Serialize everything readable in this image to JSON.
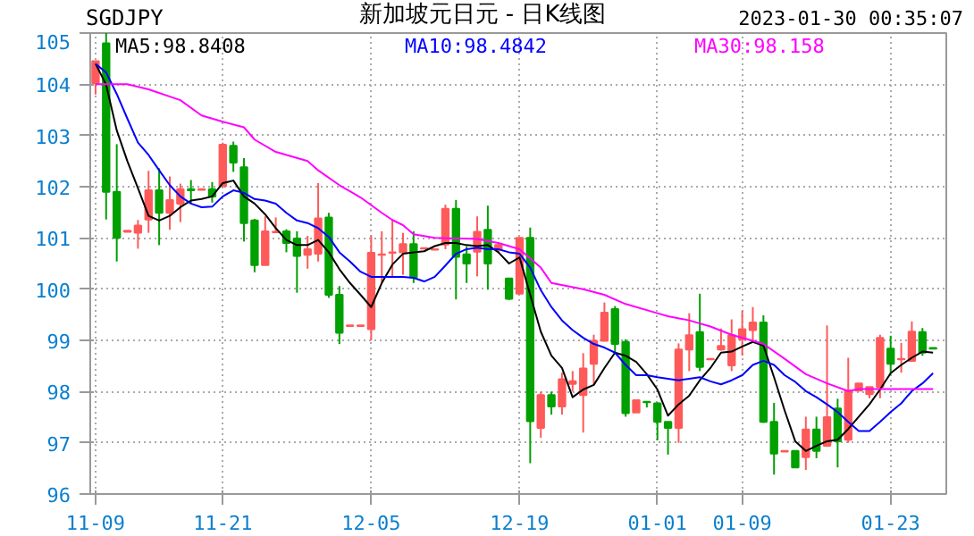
{
  "chart_data": {
    "type": "candlestick",
    "title": "新加坡元日元 - 日K线图",
    "subtitle": "SGDJPY",
    "annotations": [
      "2023-01-30 00:35:07"
    ],
    "x": [
      "2022-11-09",
      "2022-11-10",
      "2022-11-11",
      "2022-11-12",
      "2022-11-13",
      "2022-11-14",
      "2022-11-15",
      "2022-11-16",
      "2022-11-17",
      "2022-11-18",
      "2022-11-19",
      "2022-11-20",
      "2022-11-21",
      "2022-11-22",
      "2022-11-23",
      "2022-11-24",
      "2022-11-25",
      "2022-11-26",
      "2022-11-27",
      "2022-11-28",
      "2022-11-29",
      "2022-11-30",
      "2022-12-01",
      "2022-12-02",
      "2022-12-03",
      "2022-12-04",
      "2022-12-05",
      "2022-12-06",
      "2022-12-07",
      "2022-12-08",
      "2022-12-09",
      "2022-12-10",
      "2022-12-11",
      "2022-12-12",
      "2022-12-13",
      "2022-12-14",
      "2022-12-15",
      "2022-12-16",
      "2022-12-17",
      "2022-12-18",
      "2022-12-19",
      "2022-12-20",
      "2022-12-21",
      "2022-12-22",
      "2022-12-23",
      "2022-12-24",
      "2022-12-25",
      "2022-12-26",
      "2022-12-27",
      "2022-12-28",
      "2022-12-29",
      "2022-12-30",
      "2022-12-31",
      "2023-01-01",
      "2023-01-02",
      "2023-01-03",
      "2023-01-04",
      "2023-01-05",
      "2023-01-06",
      "2023-01-07",
      "2023-01-08",
      "2023-01-09",
      "2023-01-10",
      "2023-01-11",
      "2023-01-12",
      "2023-01-13",
      "2023-01-14",
      "2023-01-15",
      "2023-01-16",
      "2023-01-17",
      "2023-01-18",
      "2023-01-19",
      "2023-01-20",
      "2023-01-21",
      "2023-01-22",
      "2023-01-23",
      "2023-01-24",
      "2023-01-25",
      "2023-01-26",
      "2023-01-27"
    ],
    "ohlc": [
      [
        104.02,
        104.45,
        103.8,
        104.45
      ],
      [
        104.8,
        105.0,
        101.36,
        101.9
      ],
      [
        101.9,
        102.83,
        100.54,
        101.0
      ],
      [
        101.12,
        101.14,
        101.12,
        101.14
      ],
      [
        101.1,
        101.35,
        100.79,
        101.24
      ],
      [
        101.36,
        102.31,
        101.1,
        101.93
      ],
      [
        101.93,
        102.36,
        100.86,
        101.49
      ],
      [
        101.49,
        102.2,
        101.16,
        101.74
      ],
      [
        101.67,
        102.06,
        101.31,
        101.95
      ],
      [
        101.95,
        102.13,
        101.67,
        101.93
      ],
      [
        101.94,
        101.96,
        101.94,
        101.95
      ],
      [
        101.95,
        102.09,
        101.69,
        101.81
      ],
      [
        102.01,
        102.86,
        102.01,
        102.82
      ],
      [
        102.8,
        102.88,
        102.29,
        102.47
      ],
      [
        102.38,
        102.56,
        100.93,
        101.29
      ],
      [
        101.34,
        101.37,
        100.33,
        100.47
      ],
      [
        100.47,
        101.42,
        100.47,
        101.13
      ],
      [
        101.11,
        101.4,
        101.11,
        101.12
      ],
      [
        101.13,
        101.17,
        100.72,
        100.9
      ],
      [
        100.99,
        101.13,
        99.93,
        100.65
      ],
      [
        100.67,
        101.04,
        100.4,
        100.78
      ],
      [
        100.69,
        102.07,
        100.54,
        101.38
      ],
      [
        101.4,
        101.49,
        99.83,
        99.89
      ],
      [
        99.89,
        100.06,
        98.93,
        99.15
      ],
      [
        99.28,
        99.3,
        99.28,
        99.29
      ],
      [
        99.28,
        99.3,
        99.28,
        99.29
      ],
      [
        99.22,
        101.05,
        99.0,
        100.71
      ],
      [
        100.67,
        101.13,
        100.12,
        100.68
      ],
      [
        100.71,
        101.36,
        100.24,
        100.72
      ],
      [
        100.72,
        101.1,
        100.28,
        100.88
      ],
      [
        100.88,
        101.13,
        100.12,
        100.23
      ],
      [
        100.79,
        100.81,
        100.79,
        100.8
      ],
      [
        100.77,
        100.79,
        100.77,
        100.78
      ],
      [
        100.87,
        101.65,
        100.78,
        101.57
      ],
      [
        101.57,
        101.74,
        99.8,
        100.63
      ],
      [
        100.68,
        100.84,
        100.12,
        100.5
      ],
      [
        100.73,
        101.42,
        100.25,
        101.12
      ],
      [
        101.16,
        101.63,
        99.99,
        100.5
      ],
      [
        100.78,
        100.9,
        100.7,
        100.86
      ],
      [
        100.21,
        100.22,
        99.79,
        99.81
      ],
      [
        99.91,
        101.0,
        99.91,
        101.0
      ],
      [
        101.0,
        101.2,
        96.6,
        97.42
      ],
      [
        97.29,
        98.0,
        97.1,
        97.93
      ],
      [
        97.93,
        98.0,
        97.55,
        97.71
      ],
      [
        97.71,
        98.37,
        97.55,
        98.24
      ],
      [
        98.15,
        98.4,
        98.0,
        98.2
      ],
      [
        97.93,
        98.75,
        97.2,
        98.45
      ],
      [
        98.54,
        99.11,
        98.15,
        98.99
      ],
      [
        98.99,
        99.74,
        98.98,
        99.54
      ],
      [
        99.61,
        99.67,
        98.76,
        98.93
      ],
      [
        98.97,
        99.02,
        97.51,
        97.58
      ],
      [
        97.59,
        97.83,
        97.59,
        97.83
      ],
      [
        97.8,
        97.81,
        97.69,
        97.79
      ],
      [
        97.77,
        97.79,
        97.05,
        97.41
      ],
      [
        97.41,
        97.41,
        96.77,
        97.29
      ],
      [
        97.29,
        98.94,
        97.0,
        98.82
      ],
      [
        98.82,
        99.53,
        98.4,
        99.1
      ],
      [
        99.16,
        99.91,
        98.4,
        98.48
      ],
      [
        98.63,
        98.65,
        98.63,
        98.64
      ],
      [
        98.82,
        99.23,
        98.8,
        98.89
      ],
      [
        98.51,
        99.41,
        98.4,
        99.1
      ],
      [
        99.02,
        99.58,
        98.7,
        99.22
      ],
      [
        99.2,
        99.65,
        98.99,
        99.35
      ],
      [
        99.35,
        99.49,
        97.39,
        97.41
      ],
      [
        97.41,
        97.78,
        96.38,
        96.79
      ],
      [
        96.83,
        96.85,
        96.83,
        96.84
      ],
      [
        96.84,
        96.84,
        96.52,
        96.52
      ],
      [
        96.72,
        97.51,
        96.47,
        97.26
      ],
      [
        97.26,
        97.51,
        96.7,
        96.84
      ],
      [
        96.94,
        99.29,
        96.92,
        97.5
      ],
      [
        97.67,
        97.86,
        96.52,
        97.03
      ],
      [
        97.06,
        98.66,
        97.0,
        98.02
      ],
      [
        98.02,
        98.16,
        98.02,
        98.16
      ],
      [
        97.95,
        98.09,
        97.87,
        98.09
      ],
      [
        98.09,
        99.11,
        97.87,
        99.05
      ],
      [
        98.84,
        99.09,
        98.35,
        98.54
      ],
      [
        98.63,
        98.95,
        98.37,
        98.64
      ],
      [
        98.6,
        99.37,
        98.58,
        99.17
      ],
      [
        99.16,
        99.24,
        98.7,
        98.76
      ],
      [
        98.85,
        98.86,
        98.83,
        98.84
      ]
    ],
    "colors": [
      "#ff5a5a",
      "#00a000",
      "#00a000",
      "#ff5a5a",
      "#ff5a5a",
      "#ff5a5a",
      "#00a000",
      "#ff5a5a",
      "#ff5a5a",
      "#00a000",
      "#ff5a5a",
      "#00a000",
      "#ff5a5a",
      "#00a000",
      "#00a000",
      "#00a000",
      "#ff5a5a",
      "#ff5a5a",
      "#00a000",
      "#00a000",
      "#ff5a5a",
      "#ff5a5a",
      "#00a000",
      "#00a000",
      "#ff5a5a",
      "#ff5a5a",
      "#ff5a5a",
      "#ff5a5a",
      "#ff5a5a",
      "#ff5a5a",
      "#00a000",
      "#ff5a5a",
      "#ff5a5a",
      "#ff5a5a",
      "#00a000",
      "#00a000",
      "#ff5a5a",
      "#00a000",
      "#ff5a5a",
      "#00a000",
      "#ff5a5a",
      "#00a000",
      "#ff5a5a",
      "#00a000",
      "#ff5a5a",
      "#ff5a5a",
      "#ff5a5a",
      "#ff5a5a",
      "#ff5a5a",
      "#00a000",
      "#00a000",
      "#ff5a5a",
      "#00a000",
      "#00a000",
      "#00a000",
      "#ff5a5a",
      "#ff5a5a",
      "#00a000",
      "#ff5a5a",
      "#ff5a5a",
      "#ff5a5a",
      "#ff5a5a",
      "#ff5a5a",
      "#00a000",
      "#00a000",
      "#ff5a5a",
      "#00a000",
      "#ff5a5a",
      "#00a000",
      "#ff5a5a",
      "#00a000",
      "#ff5a5a",
      "#ff5a5a",
      "#ff5a5a",
      "#ff5a5a",
      "#00a000",
      "#ff5a5a",
      "#ff5a5a",
      "#00a000",
      "#00a000"
    ],
    "series": [
      {
        "type": "line",
        "name": "MA5:98.8408",
        "color": "#000000",
        "values": [
          104.4,
          103.99,
          103.1,
          102.5,
          101.97,
          101.43,
          101.34,
          101.43,
          101.6,
          101.73,
          101.76,
          101.81,
          102.07,
          102.12,
          101.81,
          101.67,
          101.46,
          101.19,
          100.96,
          100.86,
          100.86,
          100.96,
          100.72,
          100.39,
          100.12,
          99.89,
          99.65,
          100.12,
          100.48,
          100.69,
          100.72,
          100.74,
          100.84,
          100.9,
          100.9,
          100.86,
          100.84,
          100.86,
          100.72,
          100.5,
          100.62,
          99.89,
          99.17,
          98.7,
          98.46,
          97.89,
          98.04,
          98.13,
          98.46,
          98.76,
          98.7,
          98.58,
          98.34,
          98.04,
          97.53,
          97.75,
          97.92,
          98.22,
          98.46,
          98.76,
          98.78,
          98.88,
          98.97,
          98.9,
          98.28,
          97.63,
          97.03,
          96.84,
          96.94,
          97.03,
          97.06,
          97.27,
          97.51,
          97.75,
          98.04,
          98.36,
          98.52,
          98.66,
          98.78,
          98.76
        ]
      },
      {
        "type": "line",
        "name": "MA10:98.4842",
        "color": "#0000ff",
        "values": [
          104.4,
          104.23,
          103.81,
          103.33,
          102.86,
          102.62,
          102.32,
          102.03,
          101.81,
          101.67,
          101.6,
          101.61,
          101.81,
          101.93,
          101.88,
          101.76,
          101.73,
          101.67,
          101.49,
          101.34,
          101.29,
          101.19,
          101.02,
          100.72,
          100.54,
          100.34,
          100.24,
          100.24,
          100.24,
          100.24,
          100.22,
          100.15,
          100.24,
          100.46,
          100.69,
          100.78,
          100.81,
          100.78,
          100.78,
          100.72,
          100.69,
          100.42,
          99.98,
          99.65,
          99.39,
          99.2,
          99.05,
          98.93,
          98.86,
          98.76,
          98.52,
          98.32,
          98.32,
          98.28,
          98.25,
          98.22,
          98.25,
          98.28,
          98.2,
          98.14,
          98.22,
          98.32,
          98.52,
          98.6,
          98.52,
          98.32,
          98.19,
          98.01,
          97.89,
          97.75,
          97.6,
          97.41,
          97.23,
          97.23,
          97.41,
          97.6,
          97.77,
          98.01,
          98.16,
          98.36
        ]
      },
      {
        "type": "line",
        "name": "MA30:98.158",
        "color": "#ff00ff",
        "x": [
          "2022-11-09",
          "2022-11-12",
          "2022-11-14",
          "2022-11-17",
          "2022-11-19",
          "2022-11-21",
          "2022-11-23",
          "2022-11-24",
          "2022-11-26",
          "2022-11-29",
          "2022-11-30",
          "2022-12-02",
          "2022-12-03",
          "2022-12-04",
          "2022-12-06",
          "2022-12-07",
          "2022-12-08",
          "2022-12-09",
          "2022-12-11",
          "2022-12-15",
          "2022-12-17",
          "2022-12-19",
          "2022-12-21",
          "2022-12-22",
          "2022-12-25",
          "2022-12-27",
          "2022-12-29",
          "2023-01-01",
          "2023-01-02",
          "2023-01-04",
          "2023-01-06",
          "2023-01-08",
          "2023-01-10",
          "2023-01-11",
          "2023-01-13",
          "2023-01-15",
          "2023-01-17",
          "2023-01-19",
          "2023-01-20",
          "2023-01-23",
          "2023-01-27"
        ],
        "values": [
          104.0,
          104.0,
          103.9,
          103.69,
          103.39,
          103.27,
          103.16,
          102.92,
          102.68,
          102.5,
          102.32,
          102.03,
          101.91,
          101.79,
          101.49,
          101.35,
          101.25,
          101.07,
          101.0,
          100.98,
          100.9,
          100.78,
          100.42,
          100.12,
          100.0,
          99.89,
          99.71,
          99.53,
          99.47,
          99.39,
          99.27,
          99.11,
          98.99,
          98.93,
          98.64,
          98.34,
          98.16,
          98.01,
          98.05,
          98.05,
          98.05
        ]
      }
    ],
    "legend": "top left",
    "xlim": [
      "2022-11-08T12:00",
      "2023-01-28T06:00"
    ],
    "xticks": [
      {
        "value": "2022-11-09",
        "label": "11-09"
      },
      {
        "value": "2022-11-21",
        "label": "11-21"
      },
      {
        "value": "2022-12-05",
        "label": "12-05"
      },
      {
        "value": "2022-12-19",
        "label": "12-19"
      },
      {
        "value": "2023-01-01",
        "label": "01-01"
      },
      {
        "value": "2023-01-09",
        "label": "01-09"
      },
      {
        "value": "2023-01-23",
        "label": "01-23"
      }
    ],
    "ylim": [
      96,
      105
    ],
    "yticks": [
      96,
      97,
      98,
      99,
      100,
      101,
      102,
      103,
      104,
      105
    ],
    "grid": true
  }
}
